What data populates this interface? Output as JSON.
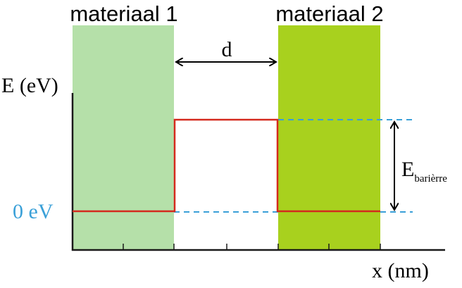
{
  "materials": [
    "materiaal 1",
    "materiaal 2"
  ],
  "distance_label": "d",
  "y_axis_label": "E (eV)",
  "zero_label": "0 eV",
  "barrier_label": {
    "main": "E",
    "sub": "barièrre"
  },
  "x_axis_label": "x (nm)"
}
